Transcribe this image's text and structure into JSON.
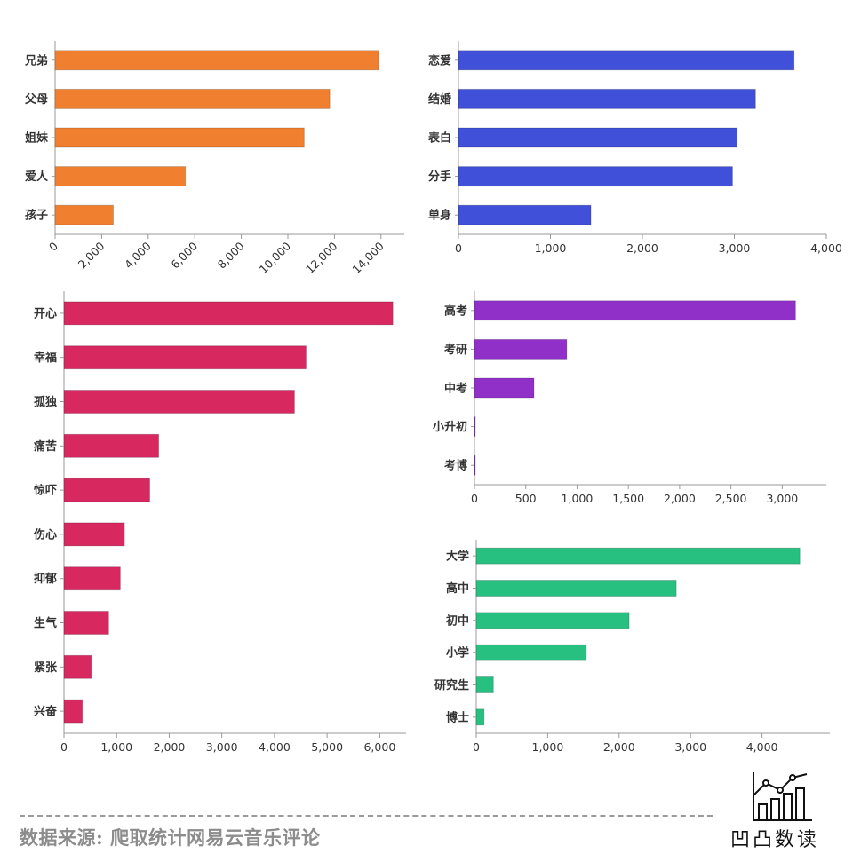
{
  "chart_data": [
    {
      "type": "bar",
      "orientation": "horizontal",
      "categories": [
        "兄弟",
        "父母",
        "姐妹",
        "爱人",
        "孩子"
      ],
      "values": [
        13900,
        11800,
        10700,
        5600,
        2500
      ],
      "xlim": [
        0,
        15000
      ],
      "xticks": [
        "0",
        "2,000",
        "4,000",
        "6,000",
        "8,000",
        "10,000",
        "12,000",
        "14,000"
      ],
      "xtick_values": [
        0,
        2000,
        4000,
        6000,
        8000,
        10000,
        12000,
        14000
      ],
      "tick_rotation": -45,
      "color": "#F08030"
    },
    {
      "type": "bar",
      "orientation": "horizontal",
      "categories": [
        "恋爱",
        "结婚",
        "表白",
        "分手",
        "单身"
      ],
      "values": [
        3650,
        3230,
        3030,
        2980,
        1440
      ],
      "xlim": [
        0,
        4000
      ],
      "xticks": [
        "0",
        "1,000",
        "2,000",
        "3,000",
        "4,000"
      ],
      "xtick_values": [
        0,
        1000,
        2000,
        3000,
        4000
      ],
      "color": "#4050D8"
    },
    {
      "type": "bar",
      "orientation": "horizontal",
      "categories": [
        "开心",
        "幸福",
        "孤独",
        "痛苦",
        "惊吓",
        "伤心",
        "抑郁",
        "生气",
        "紧张",
        "兴奋"
      ],
      "values": [
        6250,
        4600,
        4380,
        1800,
        1630,
        1150,
        1070,
        850,
        520,
        350
      ],
      "xlim": [
        0,
        6500
      ],
      "xticks": [
        "0",
        "1,000",
        "2,000",
        "3,000",
        "4,000",
        "5,000",
        "6,000"
      ],
      "xtick_values": [
        0,
        1000,
        2000,
        3000,
        4000,
        5000,
        6000
      ],
      "color": "#D82860"
    },
    {
      "type": "bar",
      "orientation": "horizontal",
      "categories": [
        "高考",
        "考研",
        "中考",
        "小升初",
        "考博"
      ],
      "values": [
        3130,
        900,
        580,
        8,
        5
      ],
      "xlim": [
        0,
        3430
      ],
      "xticks": [
        "0",
        "500",
        "1,000",
        "1,500",
        "2,000",
        "2,500",
        "3,000"
      ],
      "xtick_values": [
        0,
        500,
        1000,
        1500,
        2000,
        2500,
        3000
      ],
      "color": "#9030C8"
    },
    {
      "type": "bar",
      "orientation": "horizontal",
      "categories": [
        "大学",
        "高中",
        "初中",
        "小学",
        "研究生",
        "博士"
      ],
      "values": [
        4530,
        2800,
        2140,
        1540,
        240,
        110
      ],
      "xlim": [
        0,
        4950
      ],
      "xticks": [
        "0",
        "1,000",
        "2,000",
        "3,000",
        "4,000"
      ],
      "xtick_values": [
        0,
        1000,
        2000,
        3000,
        4000
      ],
      "color": "#28C080"
    }
  ],
  "footer": {
    "source": "数据来源: 爬取统计网易云音乐评论",
    "logo_text": "凹凸数读",
    "logo_icon": "bar-line-chart-icon"
  }
}
